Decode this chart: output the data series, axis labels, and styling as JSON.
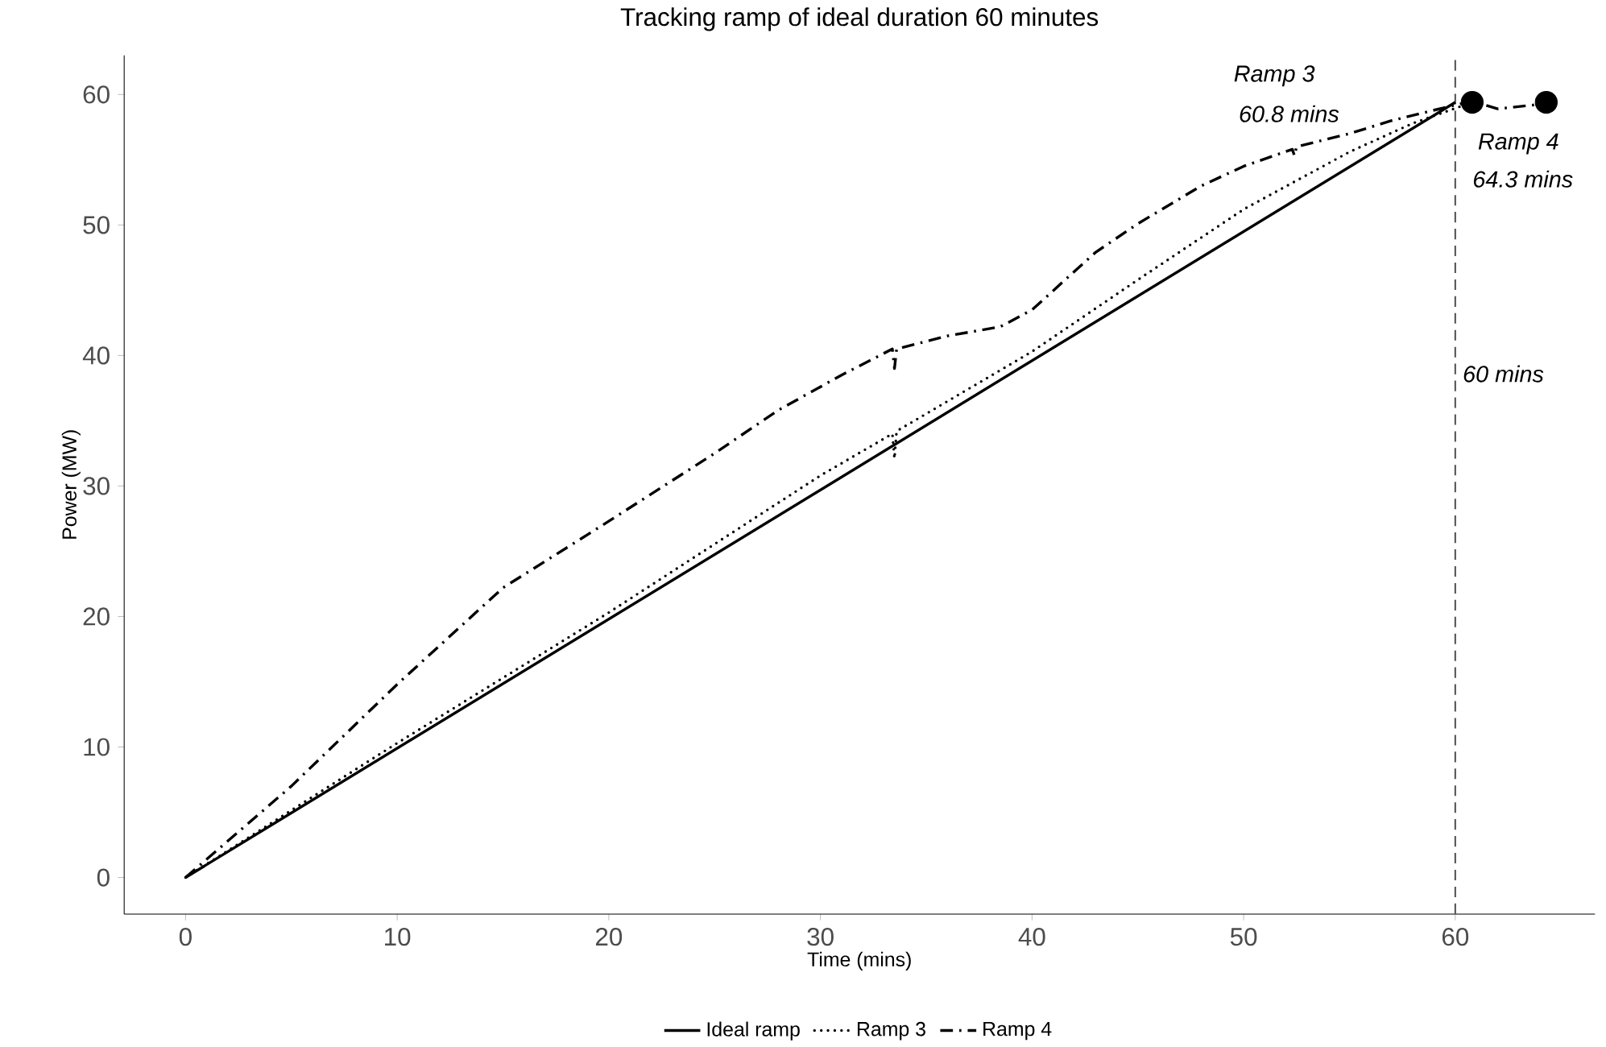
{
  "chart_data": {
    "type": "line",
    "title": "Tracking ramp of ideal duration 60 minutes",
    "xlabel": "Time (mins)",
    "ylabel": "Power (MW)",
    "xlim": [
      -2.9,
      66.6
    ],
    "ylim": [
      -2.8,
      63.0
    ],
    "xticks": [
      0,
      10,
      20,
      30,
      40,
      50,
      60
    ],
    "yticks": [
      0,
      10,
      20,
      30,
      40,
      50,
      60
    ],
    "legend": "bottom",
    "series": [
      {
        "name": "Ideal ramp",
        "color": "#000000",
        "line_style": "solid",
        "marker": "none",
        "x": [
          0,
          60
        ],
        "values": [
          0,
          59.4
        ]
      },
      {
        "name": "Ramp 3",
        "color": "#000000",
        "line_style": "dotted",
        "marker": "none",
        "x": [
          0,
          10,
          20,
          30,
          33.4,
          33.5,
          33.6,
          40,
          45,
          50,
          55,
          58,
          60.8
        ],
        "values": [
          0,
          10.3,
          20.3,
          30.8,
          34.0,
          32.1,
          34.2,
          40.3,
          45.8,
          51.2,
          55.6,
          57.8,
          59.4
        ]
      },
      {
        "name": "Ramp 4",
        "color": "#000000",
        "line_style": "dashdot",
        "marker": "none",
        "x": [
          0,
          5,
          10,
          15,
          20,
          25,
          28,
          31,
          33.4,
          33.5,
          33.6,
          36,
          38.5,
          40,
          43,
          45,
          48,
          50,
          52.3,
          52.4,
          52.5,
          55,
          57,
          59,
          60.8,
          62,
          64.3
        ],
        "values": [
          0,
          7.0,
          14.8,
          22.2,
          27.3,
          32.5,
          35.8,
          38.5,
          40.5,
          39.0,
          40.5,
          41.5,
          42.2,
          43.5,
          47.9,
          50.1,
          53.0,
          54.5,
          55.8,
          55.3,
          56.0,
          57.0,
          58.0,
          58.8,
          59.5,
          58.9,
          59.3
        ]
      },
      {
        "type": "scatter",
        "color": "#000000",
        "x": [
          60.8,
          64.3
        ],
        "values": [
          59.4,
          59.4
        ]
      }
    ],
    "ref_lines": [
      {
        "axis": "x",
        "value": 60,
        "label": "60 mins",
        "color": "#555555",
        "line_style": "dashed"
      }
    ],
    "annotations": [
      "Ramp 3",
      "60.8 mins",
      "Ramp 4",
      "64.3 mins"
    ]
  }
}
